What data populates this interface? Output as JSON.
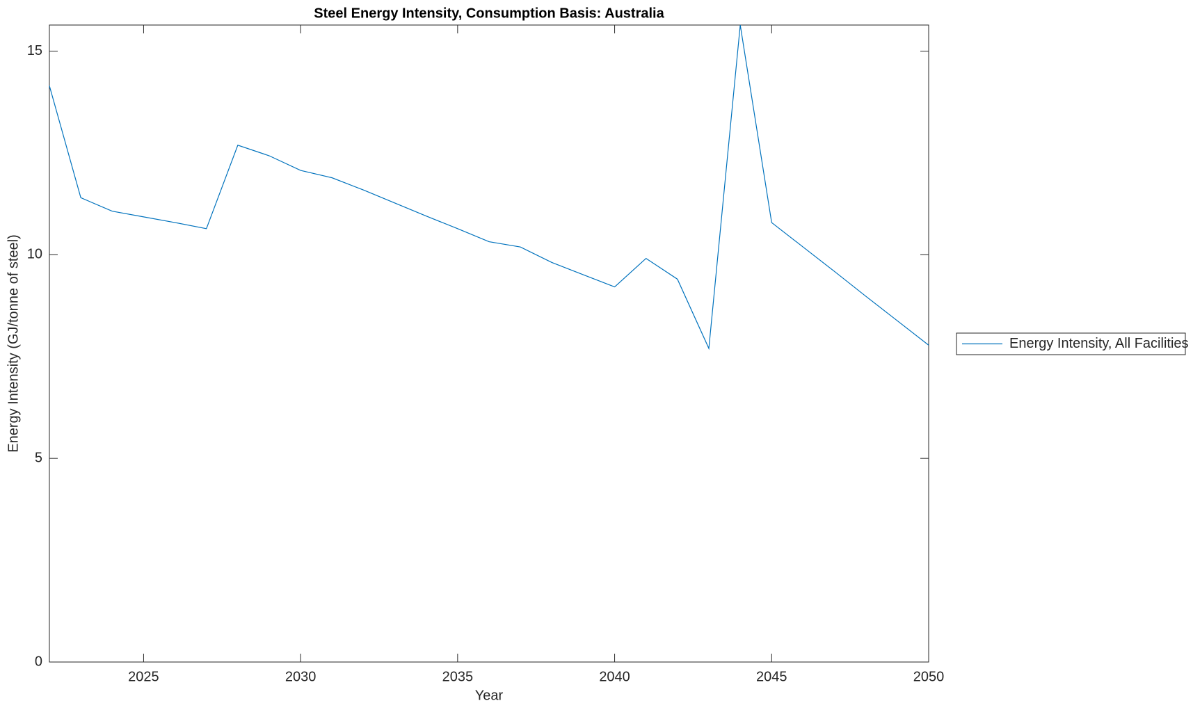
{
  "chart_data": {
    "type": "line",
    "title": "Steel Energy Intensity, Consumption Basis: Australia",
    "x_label": "Year",
    "y_label": "Energy Intensity (GJ/tonne of steel)",
    "x": [
      2022,
      2023,
      2024,
      2025,
      2026,
      2027,
      2028,
      2029,
      2030,
      2031,
      2032,
      2033,
      2034,
      2035,
      2036,
      2037,
      2038,
      2039,
      2040,
      2041,
      2042,
      2043,
      2044,
      2045,
      2046,
      2047,
      2048,
      2049,
      2050
    ],
    "series": [
      {
        "name": "Energy Intensity, All Facilities",
        "color": "#0072bd",
        "values": [
          14.15,
          11.4,
          11.07,
          10.93,
          10.79,
          10.64,
          12.69,
          12.43,
          12.07,
          11.89,
          11.59,
          11.27,
          10.95,
          10.64,
          10.32,
          10.19,
          9.81,
          9.51,
          9.21,
          9.91,
          9.4,
          7.7,
          15.64,
          10.79,
          10.19,
          9.59,
          8.98,
          8.38,
          7.78
        ]
      }
    ],
    "xlim": [
      2022,
      2050
    ],
    "xticks": [
      2025,
      2030,
      2035,
      2040,
      2045,
      2050
    ],
    "ylim": [
      0,
      15.64
    ],
    "yticks": [
      0,
      5,
      10,
      15
    ],
    "legend": "right"
  }
}
